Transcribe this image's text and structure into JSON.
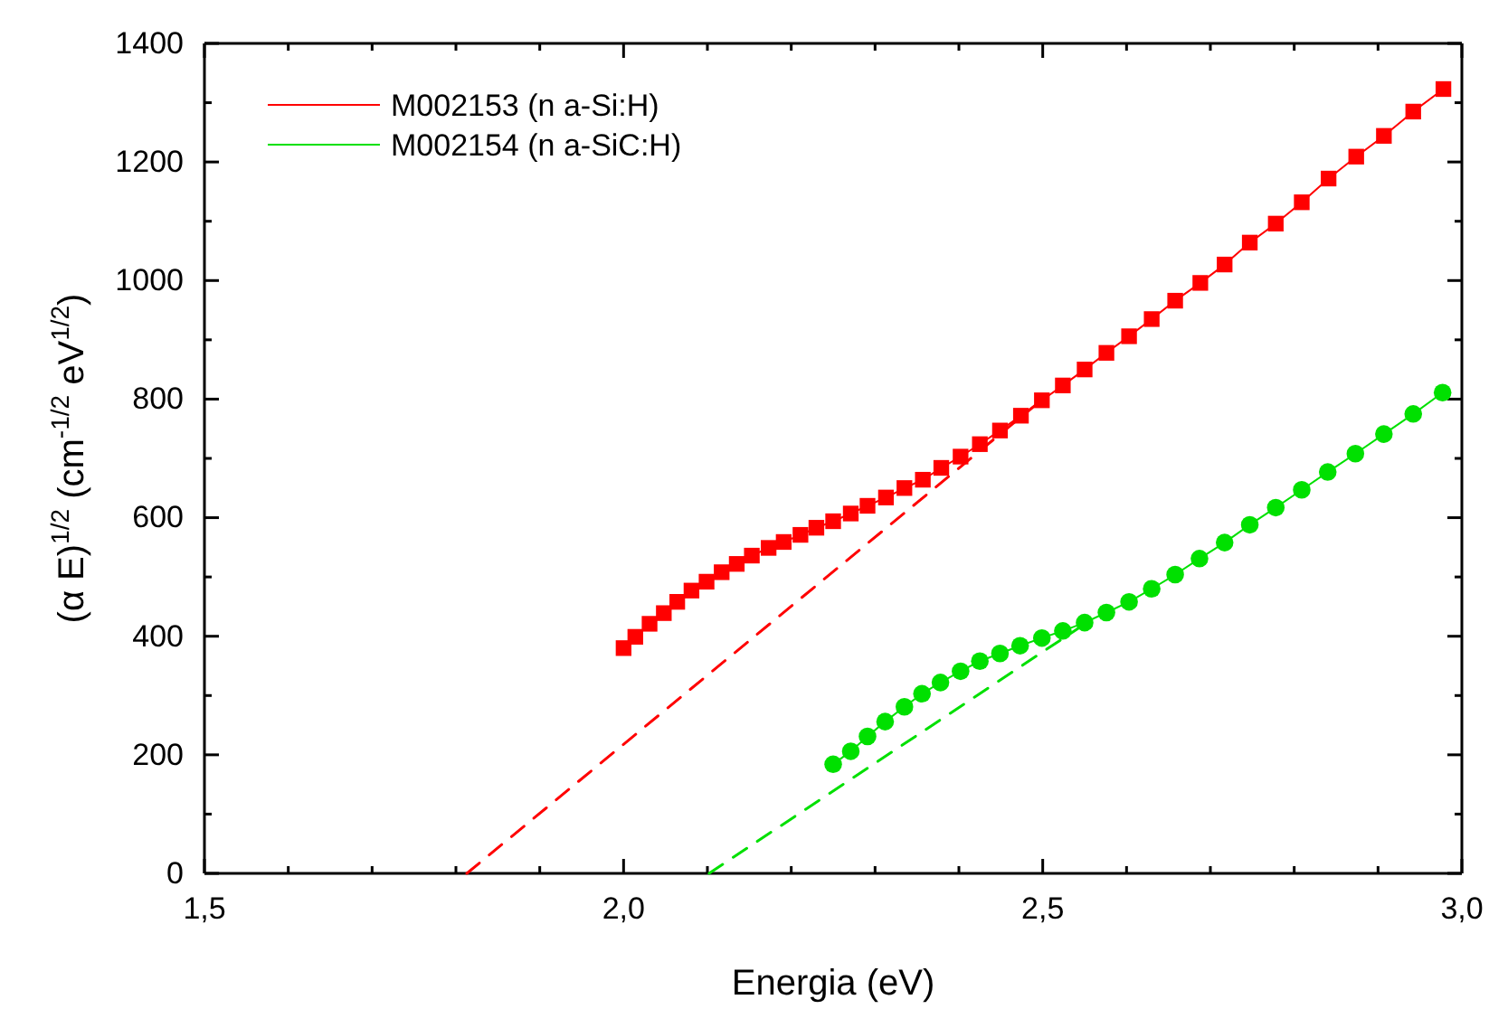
{
  "chart_data": {
    "type": "line",
    "xlabel": "Energia (eV)",
    "ylabel": "(α E)$^{1/2}$   (cm$^{-1/2}$ eV$^{1/2}$)",
    "xlim": [
      1.5,
      3.0
    ],
    "ylim": [
      0,
      1400
    ],
    "xticks": [
      {
        "value": 1.5,
        "label": "1,5"
      },
      {
        "value": 1.6,
        "label": null
      },
      {
        "value": 1.7,
        "label": null
      },
      {
        "value": 1.8,
        "label": null
      },
      {
        "value": 1.9,
        "label": null
      },
      {
        "value": 2.0,
        "label": "2,0"
      },
      {
        "value": 2.1,
        "label": null
      },
      {
        "value": 2.2,
        "label": null
      },
      {
        "value": 2.3,
        "label": null
      },
      {
        "value": 2.4,
        "label": null
      },
      {
        "value": 2.5,
        "label": "2,5"
      },
      {
        "value": 2.6,
        "label": null
      },
      {
        "value": 2.7,
        "label": null
      },
      {
        "value": 2.8,
        "label": null
      },
      {
        "value": 2.9,
        "label": null
      },
      {
        "value": 3.0,
        "label": "3,0"
      }
    ],
    "yticks": [
      0,
      {
        "value": 100,
        "label": null
      },
      200,
      {
        "value": 300,
        "label": null
      },
      400,
      {
        "value": 500,
        "label": null
      },
      600,
      {
        "value": 700,
        "label": null
      },
      800,
      {
        "value": 900,
        "label": null
      },
      1000,
      {
        "value": 1100,
        "label": null
      },
      1200,
      {
        "value": 1300,
        "label": null
      },
      1400
    ],
    "grid": false,
    "legend": "top left",
    "series": [
      {
        "name": "M002153 (n a-Si:H)",
        "color": "#ff0000",
        "marker": "square",
        "line_style": "solid",
        "x": [
          2.0,
          2.014,
          2.031,
          2.048,
          2.064,
          2.081,
          2.099,
          2.117,
          2.135,
          2.153,
          2.173,
          2.191,
          2.211,
          2.23,
          2.25,
          2.271,
          2.291,
          2.313,
          2.335,
          2.357,
          2.379,
          2.402,
          2.425,
          2.449,
          2.474,
          2.499,
          2.524,
          2.55,
          2.576,
          2.603,
          2.63,
          2.658,
          2.688,
          2.717,
          2.747,
          2.778,
          2.809,
          2.841,
          2.874,
          2.907,
          2.942,
          2.978
        ],
        "values": [
          380,
          399,
          421,
          439,
          458,
          477,
          492,
          508,
          522,
          536,
          549,
          559,
          571,
          583,
          594,
          607,
          620,
          634,
          650,
          664,
          684,
          703,
          724,
          747,
          772,
          798,
          823,
          850,
          878,
          906,
          935,
          966,
          996,
          1027,
          1064,
          1096,
          1132,
          1172,
          1209,
          1244,
          1285,
          1323
        ]
      },
      {
        "name": "M002154 (n a-SiC:H)",
        "color": "#00e000",
        "marker": "circle",
        "line_style": "solid",
        "x": [
          2.25,
          2.271,
          2.291,
          2.312,
          2.335,
          2.356,
          2.378,
          2.402,
          2.425,
          2.449,
          2.473,
          2.499,
          2.524,
          2.55,
          2.576,
          2.603,
          2.63,
          2.658,
          2.687,
          2.717,
          2.747,
          2.778,
          2.809,
          2.84,
          2.873,
          2.907,
          2.942,
          2.977
        ],
        "values": [
          184,
          206,
          231,
          256,
          281,
          303,
          322,
          341,
          358,
          371,
          384,
          397,
          409,
          423,
          440,
          458,
          480,
          504,
          531,
          558,
          588,
          617,
          647,
          677,
          708,
          741,
          775,
          811
        ]
      },
      {
        "color": "#ff0000",
        "marker": "none",
        "line_style": "dashed",
        "x": [
          1.813,
          2.5
        ],
        "values": [
          0,
          800
        ]
      },
      {
        "color": "#00e000",
        "marker": "none",
        "line_style": "dashed",
        "x": [
          2.102,
          2.56
        ],
        "values": [
          0,
          430
        ]
      }
    ]
  }
}
